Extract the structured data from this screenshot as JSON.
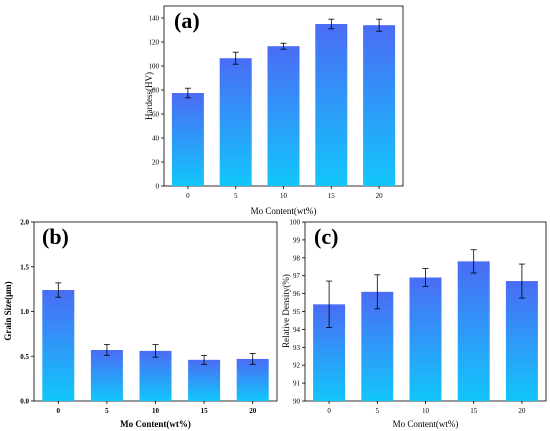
{
  "chart_data": [
    {
      "type": "bar",
      "panel_label": "(a)",
      "categories": [
        "0",
        "5",
        "10",
        "15",
        "20"
      ],
      "values": [
        77.5,
        106.5,
        116.5,
        135,
        134
      ],
      "errors": [
        4,
        5,
        2.5,
        4,
        5
      ],
      "xlabel": "Mo Content(wt%)",
      "ylabel": "Hardess(HV)",
      "ylim": [
        0,
        150
      ],
      "yticks": [
        "0",
        "20",
        "40",
        "60",
        "80",
        "100",
        "120",
        "140"
      ],
      "grid": false,
      "colors": {
        "top": "#4a6cf5",
        "bottom": "#12c6fb"
      }
    },
    {
      "type": "bar",
      "panel_label": "(b)",
      "categories": [
        "0",
        "5",
        "10",
        "15",
        "20"
      ],
      "values": [
        1.24,
        0.57,
        0.56,
        0.46,
        0.47
      ],
      "errors": [
        0.08,
        0.06,
        0.07,
        0.05,
        0.06
      ],
      "xlabel": "Mo Content(wt%)",
      "ylabel": "Grain Size(μm)",
      "ylim": [
        0,
        2.0
      ],
      "yticks": [
        "0.0",
        "0.5",
        "1.0",
        "1.5",
        "2.0"
      ],
      "grid": false,
      "colors": {
        "top": "#4a6cf5",
        "bottom": "#12c6fb"
      }
    },
    {
      "type": "bar",
      "panel_label": "(c)",
      "categories": [
        "0",
        "5",
        "10",
        "15",
        "20"
      ],
      "values": [
        95.4,
        96.1,
        96.9,
        97.8,
        96.7
      ],
      "errors": [
        1.3,
        0.95,
        0.5,
        0.65,
        0.95
      ],
      "xlabel": "Mo Content(wt%)",
      "ylabel": "Relative Density(%)",
      "ylim": [
        90,
        100
      ],
      "yticks": [
        "90",
        "91",
        "92",
        "93",
        "94",
        "95",
        "96",
        "97",
        "98",
        "99",
        "100"
      ],
      "grid": false,
      "colors": {
        "top": "#4a6cf5",
        "bottom": "#12c6fb"
      }
    }
  ]
}
